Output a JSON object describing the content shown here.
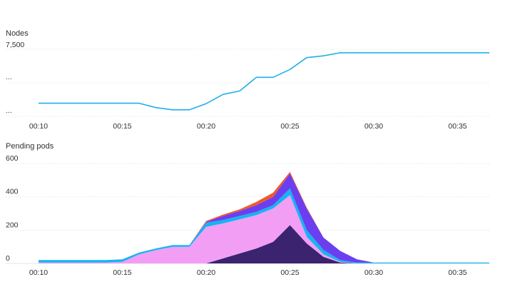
{
  "colors": {
    "line": "#1fb0e8",
    "area_bottom": "#3b2370",
    "area_pink": "#f29ef5",
    "area_blue": "#16b4f0",
    "area_violet": "#6b3ff0",
    "area_orange": "#f0582a"
  },
  "chart_data": [
    {
      "type": "line",
      "title": "Nodes",
      "x_tick_labels": [
        "00:10",
        "00:15",
        "00:20",
        "00:25",
        "00:30",
        "00:35"
      ],
      "y_tick_labels": [
        "7,500",
        "...",
        "..."
      ],
      "x_minutes": [
        0,
        1,
        2,
        3,
        4,
        5,
        6,
        7,
        8,
        9,
        10,
        11,
        12,
        13,
        14,
        15,
        16,
        17,
        18,
        19,
        20,
        21,
        22,
        23,
        24,
        25,
        26,
        27
      ],
      "series": [
        {
          "values": [
            6300,
            6300,
            6300,
            6300,
            6300,
            6300,
            6300,
            6200,
            6150,
            6150,
            6290,
            6500,
            6580,
            6890,
            6890,
            7070,
            7340,
            7380,
            7450,
            7450,
            7450,
            7450,
            7450,
            7450,
            7450,
            7450,
            7450,
            7450
          ]
        }
      ],
      "ylim": [
        6000,
        7530
      ],
      "grid": true
    },
    {
      "type": "area",
      "title": "Pending pods",
      "x_tick_labels": [
        "00:10",
        "00:15",
        "00:20",
        "00:25",
        "00:30",
        "00:35"
      ],
      "y_tick_labels": [
        "600",
        "400",
        "200",
        "0"
      ],
      "x_minutes": [
        0,
        1,
        2,
        3,
        4,
        5,
        6,
        7,
        8,
        9,
        10,
        11,
        12,
        13,
        14,
        15,
        16,
        17,
        18,
        19,
        20,
        21,
        22,
        23,
        24,
        25,
        26,
        27
      ],
      "stacked": true,
      "series": [
        {
          "color_key": "area_bottom",
          "values": [
            0,
            0,
            0,
            0,
            0,
            0,
            0,
            0,
            0,
            0,
            0,
            30,
            60,
            90,
            130,
            230,
            120,
            40,
            5,
            0,
            0,
            0,
            0,
            0,
            0,
            0,
            0,
            0
          ]
        },
        {
          "color_key": "area_pink",
          "values": [
            5,
            5,
            5,
            5,
            5,
            10,
            55,
            80,
            100,
            100,
            220,
            210,
            205,
            200,
            200,
            180,
            40,
            15,
            5,
            0,
            0,
            0,
            0,
            0,
            0,
            0,
            0,
            0
          ]
        },
        {
          "color_key": "area_blue",
          "values": [
            15,
            15,
            15,
            15,
            15,
            15,
            10,
            10,
            10,
            10,
            25,
            20,
            20,
            20,
            20,
            40,
            40,
            25,
            10,
            5,
            5,
            5,
            5,
            5,
            5,
            5,
            5,
            5
          ]
        },
        {
          "color_key": "area_violet",
          "values": [
            0,
            0,
            0,
            0,
            0,
            0,
            0,
            0,
            0,
            0,
            5,
            25,
            30,
            40,
            50,
            90,
            130,
            75,
            55,
            20,
            0,
            0,
            0,
            0,
            0,
            0,
            0,
            0
          ]
        },
        {
          "color_key": "area_orange",
          "values": [
            0,
            0,
            0,
            0,
            0,
            0,
            0,
            0,
            0,
            0,
            5,
            8,
            10,
            20,
            25,
            10,
            5,
            0,
            0,
            0,
            0,
            0,
            0,
            0,
            0,
            0,
            0,
            0
          ]
        }
      ],
      "ylim": [
        0,
        600
      ],
      "grid": true
    }
  ]
}
